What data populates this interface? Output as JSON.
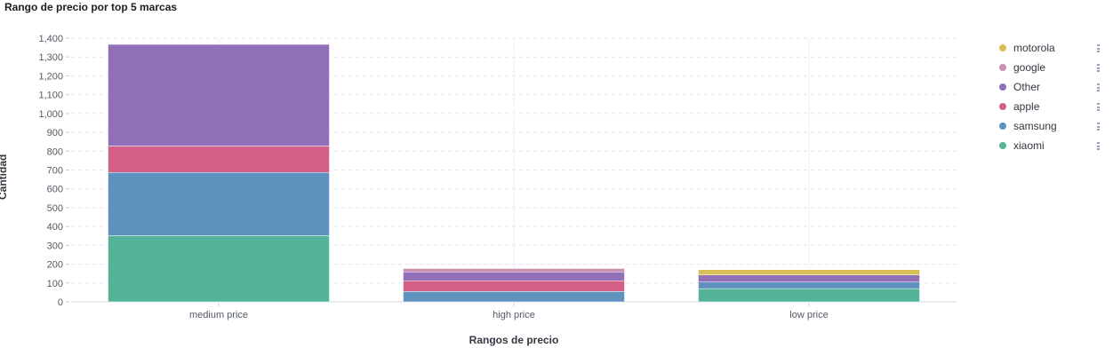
{
  "chart_data": {
    "type": "bar",
    "stacked": true,
    "title": "Rango de precio por top 5 marcas",
    "xlabel": "Rangos de precio",
    "ylabel": "Cantidad",
    "categories": [
      "medium price",
      "high price",
      "low price"
    ],
    "ylim": [
      0,
      1400
    ],
    "yticks": [
      "0",
      "100",
      "200",
      "300",
      "400",
      "500",
      "600",
      "700",
      "800",
      "900",
      "1,000",
      "1,100",
      "1,200",
      "1,300",
      "1,400"
    ],
    "grid": true,
    "legend_position": "right",
    "series": [
      {
        "name": "xiaomi",
        "color": "#54b399",
        "values": [
          352,
          0,
          70
        ]
      },
      {
        "name": "samsung",
        "color": "#6092c0",
        "values": [
          335,
          55,
          35
        ]
      },
      {
        "name": "apple",
        "color": "#d36086",
        "values": [
          140,
          57,
          0
        ]
      },
      {
        "name": "Other",
        "color": "#9170b8",
        "values": [
          540,
          47,
          38
        ]
      },
      {
        "name": "google",
        "color": "#ca8eae",
        "values": [
          0,
          18,
          0
        ]
      },
      {
        "name": "motorola",
        "color": "#d6bf57",
        "values": [
          0,
          0,
          28
        ]
      }
    ]
  }
}
